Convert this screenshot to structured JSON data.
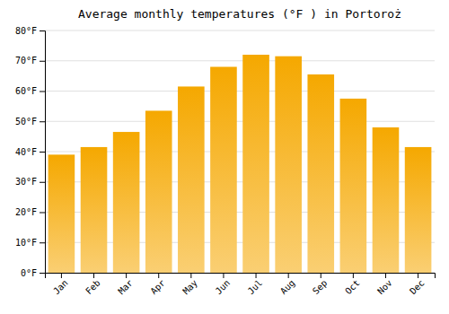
{
  "chart_data": {
    "type": "bar",
    "title": "Average monthly temperatures (°F ) in Portoroż",
    "categories": [
      "Jan",
      "Feb",
      "Mar",
      "Apr",
      "May",
      "Jun",
      "Jul",
      "Aug",
      "Sep",
      "Oct",
      "Nov",
      "Dec"
    ],
    "values": [
      39,
      41.5,
      46.5,
      53.5,
      61.5,
      68,
      72,
      71.5,
      65.5,
      57.5,
      48,
      41.5
    ],
    "color": "#F5A800",
    "ylim": [
      0,
      80
    ],
    "yticks": [
      {
        "value": 0,
        "label": "0°F"
      },
      {
        "value": 10,
        "label": "10°F"
      },
      {
        "value": 20,
        "label": "20°F"
      },
      {
        "value": 30,
        "label": "30°F"
      },
      {
        "value": 40,
        "label": "40°F"
      },
      {
        "value": 50,
        "label": "50°F"
      },
      {
        "value": 60,
        "label": "60°F"
      },
      {
        "value": 70,
        "label": "70°F"
      },
      {
        "value": 80,
        "label": "80°F"
      }
    ],
    "grid": true
  }
}
